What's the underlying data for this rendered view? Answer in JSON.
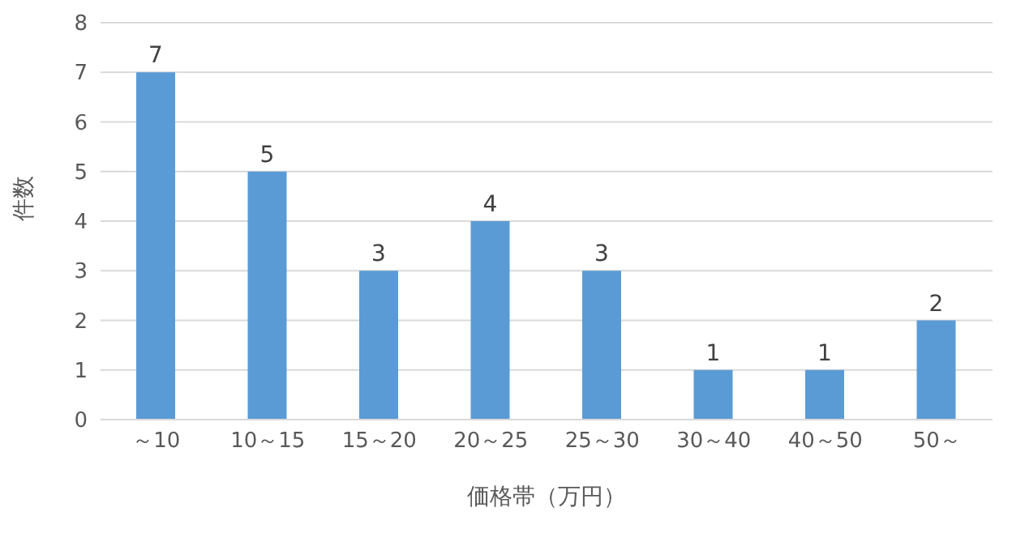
{
  "chart_data": {
    "type": "bar",
    "xlabel": "価格帯（万円）",
    "ylabel": "件数",
    "categories": [
      "～10",
      "10～15",
      "15～20",
      "20～25",
      "25～30",
      "30～40",
      "40～50",
      "50～"
    ],
    "values": [
      7,
      5,
      3,
      4,
      3,
      1,
      1,
      2
    ],
    "color": "#5b9bd5",
    "ylim": [
      0,
      8
    ],
    "yticks": [
      0,
      1,
      2,
      3,
      4,
      5,
      6,
      7,
      8
    ],
    "grid": "y",
    "data_labels": true
  }
}
